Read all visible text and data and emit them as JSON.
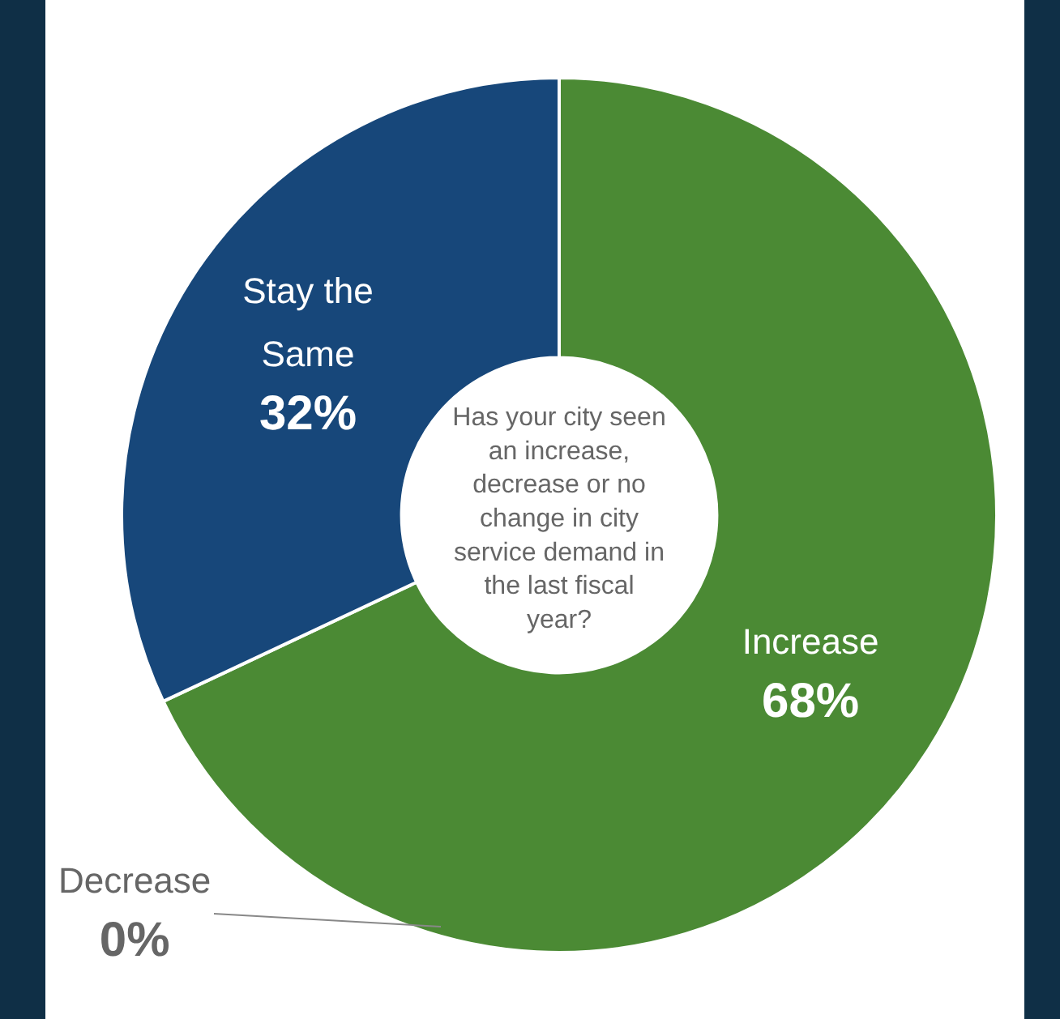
{
  "chart_data": {
    "type": "donut",
    "title": "Has your city seen an increase, decrease or no change in city service demand in the last fiscal year?",
    "categories": [
      "Increase",
      "Decrease",
      "Stay the Same"
    ],
    "values": [
      68,
      0,
      32
    ],
    "colors": [
      "#4b8a34",
      "#8a8a8a",
      "#17477a"
    ],
    "value_labels": [
      "68%",
      "0%",
      "32%"
    ],
    "legend": false
  }
}
